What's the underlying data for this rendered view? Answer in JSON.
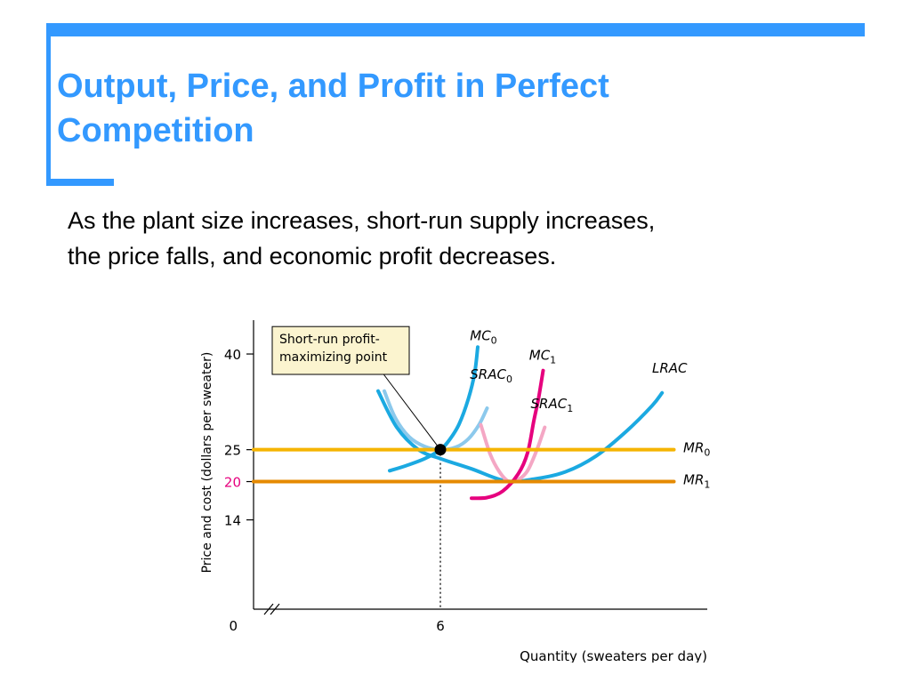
{
  "slide": {
    "title_line1": "Output, Price, and Profit in Perfect",
    "title_line2": "Competition",
    "body_line1": "As the plant size increases, short-run supply increases,",
    "body_line2": "the price falls, and economic profit decreases.",
    "accent_color": "#3399ff"
  },
  "chart_data": {
    "type": "line",
    "xlabel": "Quantity (sweaters per day)",
    "ylabel": "Price and cost (dollars per sweater)",
    "origin_label": "0",
    "x_ticks": [
      {
        "value": 6,
        "label": "6"
      }
    ],
    "y_ticks": [
      {
        "value": 40,
        "label": "40",
        "color": "#000000"
      },
      {
        "value": 25,
        "label": "25",
        "color": "#000000"
      },
      {
        "value": 20,
        "label": "20",
        "color": "#e6007e"
      },
      {
        "value": 14,
        "label": "14",
        "color": "#000000"
      }
    ],
    "axis_break": true,
    "grid": false,
    "series": [
      {
        "key": "mc0",
        "name": "MC",
        "sub": "0",
        "color": "#1ba9e1",
        "width": 4,
        "points": [
          [
            4.37,
            21.7
          ],
          [
            4.9,
            22.5
          ],
          [
            5.5,
            23.6
          ],
          [
            6,
            25
          ],
          [
            6.3,
            26.6
          ],
          [
            6.6,
            29
          ],
          [
            6.9,
            33
          ],
          [
            7.1,
            37
          ],
          [
            7.2,
            41.1
          ]
        ]
      },
      {
        "key": "srac0",
        "name": "SRAC",
        "sub": "0",
        "color": "#8cc9ec",
        "width": 4,
        "points": [
          [
            4.2,
            34.2
          ],
          [
            4.55,
            30
          ],
          [
            5,
            27
          ],
          [
            5.5,
            25.5
          ],
          [
            6,
            25
          ],
          [
            6.5,
            25.4
          ],
          [
            6.9,
            26.7
          ],
          [
            7.25,
            29
          ],
          [
            7.5,
            31.5
          ]
        ]
      },
      {
        "key": "lrac",
        "name": "LRAC",
        "sub": "",
        "color": "#1ba9e1",
        "width": 4,
        "points": [
          [
            4.0,
            34.2
          ],
          [
            4.6,
            28.5
          ],
          [
            5.3,
            25
          ],
          [
            6,
            23.6
          ],
          [
            7,
            22
          ],
          [
            8.1,
            20.1
          ],
          [
            9,
            20.4
          ],
          [
            10,
            21.5
          ],
          [
            11,
            24
          ],
          [
            12,
            28
          ],
          [
            12.8,
            31.9
          ],
          [
            13.12,
            33.9
          ]
        ]
      },
      {
        "key": "srac1",
        "name": "SRAC",
        "sub": "1",
        "color": "#f4a7c4",
        "width": 4,
        "points": [
          [
            7.3,
            28.9
          ],
          [
            7.6,
            24.3
          ],
          [
            7.9,
            21.5
          ],
          [
            8.2,
            20
          ],
          [
            8.5,
            20.3
          ],
          [
            8.8,
            21.7
          ],
          [
            9.1,
            25
          ],
          [
            9.35,
            28.5
          ]
        ]
      },
      {
        "key": "mc1",
        "name": "MC",
        "sub": "1",
        "color": "#e6007e",
        "width": 4,
        "points": [
          [
            7.0,
            17.4
          ],
          [
            7.5,
            17.5
          ],
          [
            8,
            18.5
          ],
          [
            8.5,
            21.2
          ],
          [
            8.8,
            24.5
          ],
          [
            9.0,
            29.5
          ],
          [
            9.15,
            33
          ],
          [
            9.3,
            37.4
          ]
        ]
      },
      {
        "key": "mr0",
        "name": "MR",
        "sub": "0",
        "color": "#f5b400",
        "width": 4,
        "points": [
          [
            0,
            25
          ],
          [
            13.5,
            25
          ]
        ]
      },
      {
        "key": "mr1",
        "name": "MR",
        "sub": "1",
        "color": "#e58a00",
        "width": 4,
        "points": [
          [
            0,
            20
          ],
          [
            13.5,
            20
          ]
        ]
      }
    ],
    "series_labels": [
      {
        "key": "mc0",
        "x": 6.95,
        "y": 42.2,
        "anchor": "start"
      },
      {
        "key": "mc1",
        "x": 8.85,
        "y": 39.1,
        "anchor": "start"
      },
      {
        "key": "srac0",
        "x": 6.95,
        "y": 36.1,
        "anchor": "start"
      },
      {
        "key": "srac1",
        "x": 8.9,
        "y": 31.5,
        "anchor": "start"
      },
      {
        "key": "lrac",
        "x": 12.8,
        "y": 37.1,
        "anchor": "start"
      },
      {
        "key": "mr0",
        "x": 13.8,
        "y": 24.6,
        "anchor": "start"
      },
      {
        "key": "mr1",
        "x": 13.8,
        "y": 19.6,
        "anchor": "start"
      }
    ],
    "point": {
      "x": 6,
      "y": 25
    },
    "annotation": {
      "lines": [
        "Short-run profit-",
        "maximizing point"
      ],
      "box_fill": "#fbf4cf",
      "box_x": 0.6,
      "box_y": 44.3,
      "box_w": 4.4,
      "box_h": 7.5,
      "pointer_from": [
        4.18,
        36.8
      ]
    },
    "xlim": [
      0,
      14
    ],
    "ylim": [
      0,
      46
    ]
  }
}
